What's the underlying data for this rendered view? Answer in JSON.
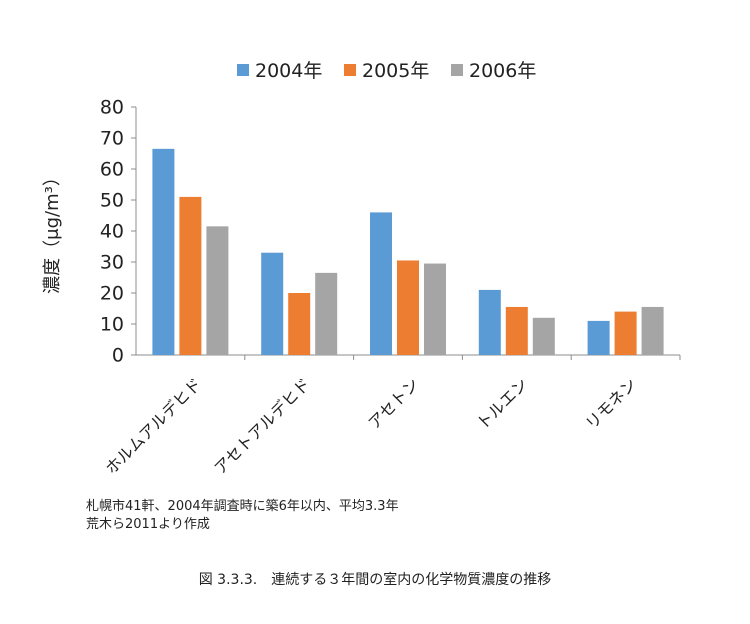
{
  "chart_data": {
    "type": "bar",
    "title": "",
    "xlabel": "",
    "ylabel": "濃度（μg/m³）",
    "ylim": [
      0,
      80
    ],
    "yticks": [
      0,
      10,
      20,
      30,
      40,
      50,
      60,
      70,
      80
    ],
    "grid": false,
    "legend_position": "top",
    "categories": [
      "ホルムアルデヒド",
      "アセトアルデヒド",
      "アセトン",
      "トルエン",
      "リモネン"
    ],
    "series": [
      {
        "name": "2004年",
        "color": "#5b9bd5",
        "values": [
          66.5,
          33.0,
          46.0,
          21.0,
          11.0
        ]
      },
      {
        "name": "2005年",
        "color": "#ed7d31",
        "values": [
          51.0,
          20.0,
          30.5,
          15.5,
          14.0
        ]
      },
      {
        "name": "2006年",
        "color": "#a5a5a5",
        "values": [
          41.5,
          26.5,
          29.5,
          12.0,
          15.5
        ]
      }
    ]
  },
  "notes": {
    "line1": "札幌市41軒、2004年調査時に築6年以内、平均3.3年",
    "line2": "荒木ら2011より作成"
  },
  "caption": "図 3.3.3.　連続する３年間の室内の化学物質濃度の推移"
}
